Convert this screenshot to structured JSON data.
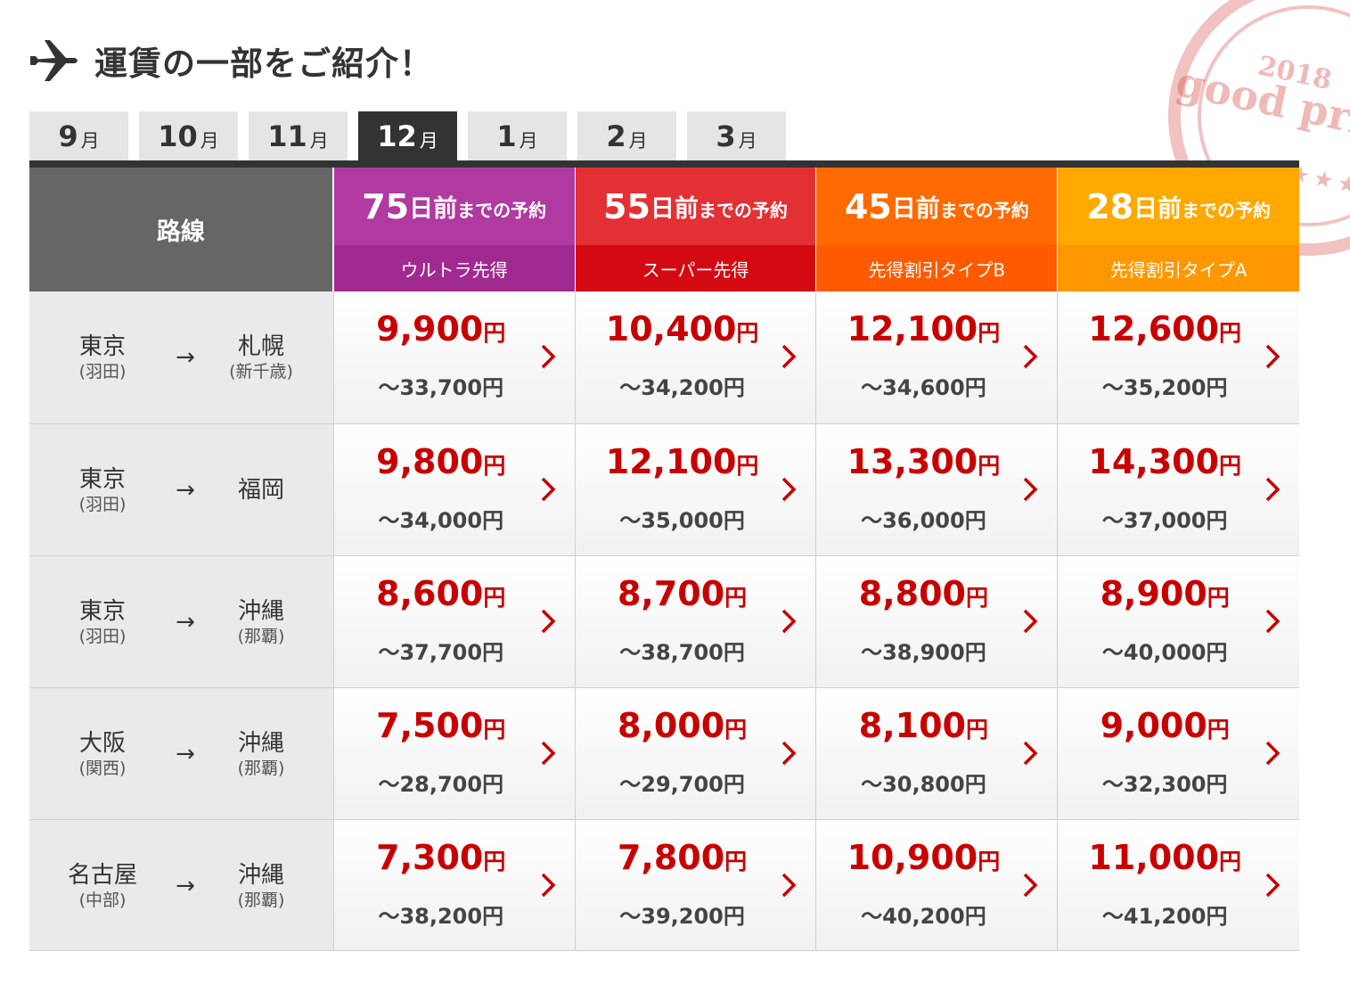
{
  "stamp": {
    "year": "2018",
    "text": "good price"
  },
  "header": {
    "title": "運賃の一部をご紹介！",
    "icon": "airplane-icon"
  },
  "tabs": [
    {
      "num": "9",
      "unit": "月",
      "active": false
    },
    {
      "num": "10",
      "unit": "月",
      "active": false
    },
    {
      "num": "11",
      "unit": "月",
      "active": false
    },
    {
      "num": "12",
      "unit": "月",
      "active": true
    },
    {
      "num": "1",
      "unit": "月",
      "active": false
    },
    {
      "num": "2",
      "unit": "月",
      "active": false
    },
    {
      "num": "3",
      "unit": "月",
      "active": false
    }
  ],
  "table": {
    "route_header": "路線",
    "arrow": "→",
    "columns": [
      {
        "days": "75",
        "unit": "日",
        "mae": "前",
        "suffix": "までの予約",
        "name": "ウルトラ先得",
        "top_color": "#b03aa0",
        "sub_color": "#a02a8f"
      },
      {
        "days": "55",
        "unit": "日",
        "mae": "前",
        "suffix": "までの予約",
        "name": "スーパー先得",
        "top_color": "#e23034",
        "sub_color": "#d40a12"
      },
      {
        "days": "45",
        "unit": "日",
        "mae": "前",
        "suffix": "までの予約",
        "name": "先得割引タイプB",
        "top_color": "#ff6a00",
        "sub_color": "#ff5a00"
      },
      {
        "days": "28",
        "unit": "日",
        "mae": "前",
        "suffix": "までの予約",
        "name": "先得割引タイプA",
        "top_color": "#ffa800",
        "sub_color": "#ff9800"
      }
    ],
    "rows": [
      {
        "from": "東京",
        "from_apt": "(羽田)",
        "to": "札幌",
        "to_apt": "(新千歳)",
        "fares": [
          {
            "price": "9,900",
            "yen": "円",
            "range": "～33,700円"
          },
          {
            "price": "10,400",
            "yen": "円",
            "range": "～34,200円"
          },
          {
            "price": "12,100",
            "yen": "円",
            "range": "～34,600円"
          },
          {
            "price": "12,600",
            "yen": "円",
            "range": "～35,200円"
          }
        ]
      },
      {
        "from": "東京",
        "from_apt": "(羽田)",
        "to": "福岡",
        "to_apt": "",
        "fares": [
          {
            "price": "9,800",
            "yen": "円",
            "range": "～34,000円"
          },
          {
            "price": "12,100",
            "yen": "円",
            "range": "～35,000円"
          },
          {
            "price": "13,300",
            "yen": "円",
            "range": "～36,000円"
          },
          {
            "price": "14,300",
            "yen": "円",
            "range": "～37,000円"
          }
        ]
      },
      {
        "from": "東京",
        "from_apt": "(羽田)",
        "to": "沖縄",
        "to_apt": "(那覇)",
        "fares": [
          {
            "price": "8,600",
            "yen": "円",
            "range": "～37,700円"
          },
          {
            "price": "8,700",
            "yen": "円",
            "range": "～38,700円"
          },
          {
            "price": "8,800",
            "yen": "円",
            "range": "～38,900円"
          },
          {
            "price": "8,900",
            "yen": "円",
            "range": "～40,000円"
          }
        ]
      },
      {
        "from": "大阪",
        "from_apt": "(関西)",
        "to": "沖縄",
        "to_apt": "(那覇)",
        "fares": [
          {
            "price": "7,500",
            "yen": "円",
            "range": "～28,700円"
          },
          {
            "price": "8,000",
            "yen": "円",
            "range": "～29,700円"
          },
          {
            "price": "8,100",
            "yen": "円",
            "range": "～30,800円"
          },
          {
            "price": "9,000",
            "yen": "円",
            "range": "～32,300円"
          }
        ]
      },
      {
        "from": "名古屋",
        "from_apt": "(中部)",
        "to": "沖縄",
        "to_apt": "(那覇)",
        "fares": [
          {
            "price": "7,300",
            "yen": "円",
            "range": "～38,200円"
          },
          {
            "price": "7,800",
            "yen": "円",
            "range": "～39,200円"
          },
          {
            "price": "10,900",
            "yen": "円",
            "range": "～40,200円"
          },
          {
            "price": "11,000",
            "yen": "円",
            "range": "～41,200円"
          }
        ]
      }
    ]
  }
}
